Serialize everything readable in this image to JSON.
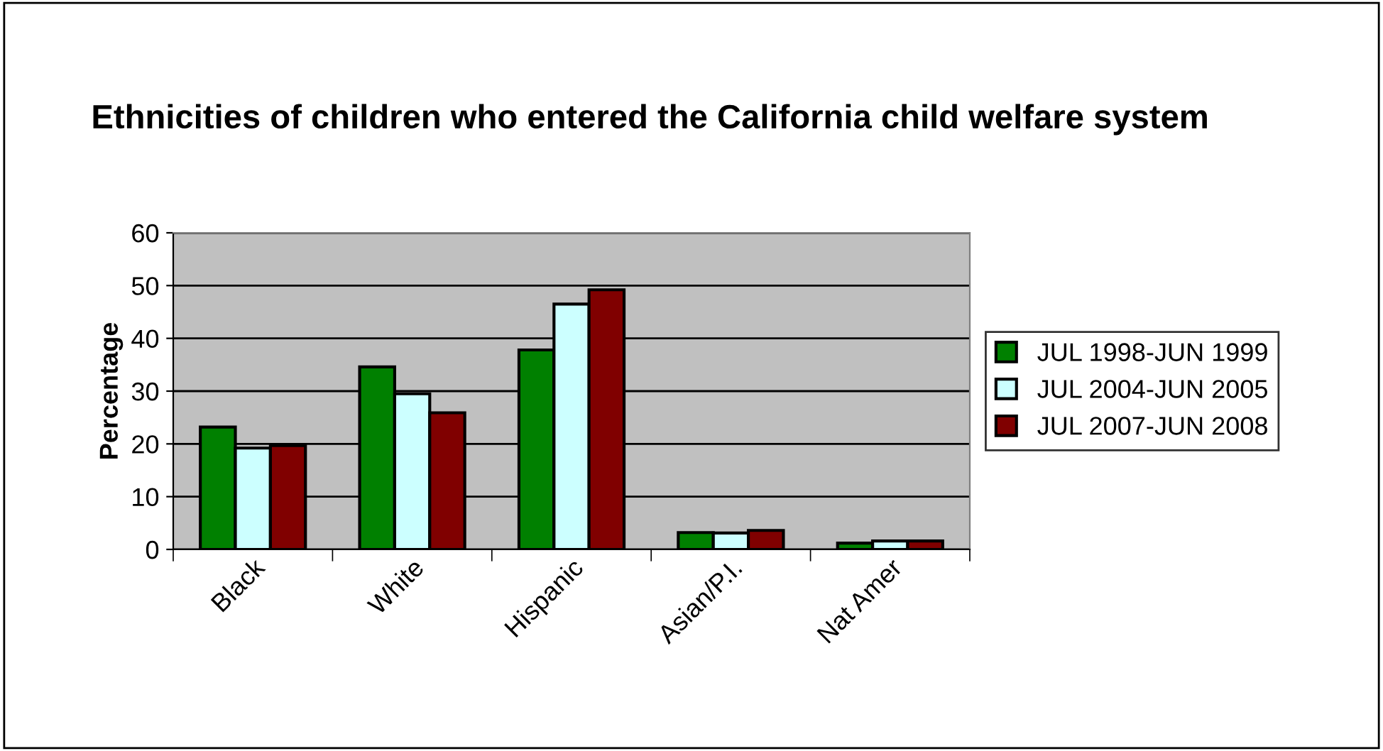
{
  "chart_data": {
    "type": "bar",
    "title": "Ethnicities of children who entered the California child welfare system",
    "ylabel": "Percentage",
    "categories": [
      "Black",
      "White",
      "Hispanic",
      "Asian/P.I.",
      "Nat Amer"
    ],
    "series": [
      {
        "name": "JUL 1998-JUN 1999",
        "color": "#008000",
        "values": [
          23.2,
          34.6,
          37.8,
          3.2,
          1.2
        ]
      },
      {
        "name": "JUL 2004-JUN 2005",
        "color": "#ccffff",
        "values": [
          19.2,
          29.5,
          46.5,
          3.1,
          1.6
        ]
      },
      {
        "name": "JUL 2007-JUN 2008",
        "color": "#800000",
        "values": [
          19.7,
          25.9,
          49.2,
          3.6,
          1.6
        ]
      }
    ],
    "ylim": [
      0,
      60
    ],
    "yticks": [
      0,
      10,
      20,
      30,
      40,
      50,
      60
    ],
    "grid": "y",
    "legend": "right"
  }
}
